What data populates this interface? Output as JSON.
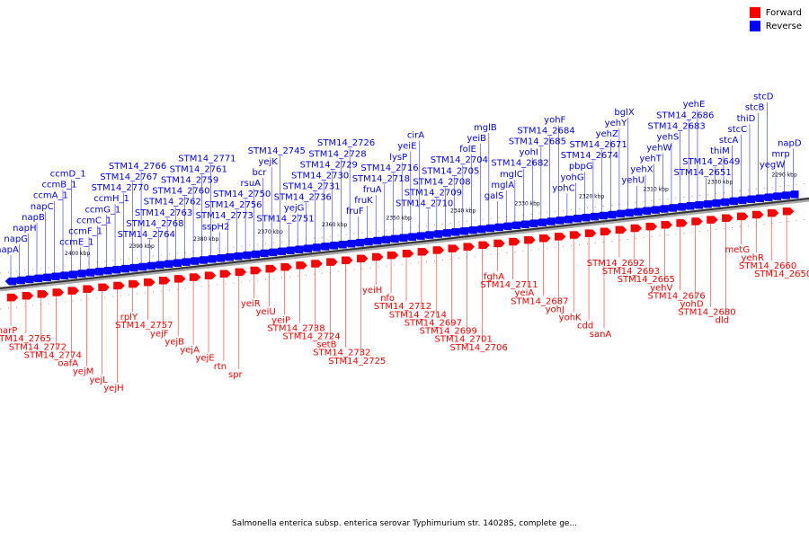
{
  "colors": {
    "forward": "#ff0000",
    "reverse": "#0000ff",
    "axis": "#888888"
  },
  "legend": [
    {
      "label": "Forward",
      "color": "#ff0000"
    },
    {
      "label": "Reverse",
      "color": "#0000ff"
    }
  ],
  "caption": "Salmonella enterica subsp. enterica serovar Typhimurium str. 14028S, complete ge...",
  "kbp_labels": [
    "2400 kbp",
    "2390 kbp",
    "2380 kbp",
    "2370 kbp",
    "2360 kbp",
    "2350 kbp",
    "2340 kbp",
    "2330 kbp",
    "2320 kbp",
    "2310 kbp",
    "2300 kbp",
    "2290 kbp"
  ],
  "reverse_labels": [
    "napA",
    "napG",
    "napH",
    "napB",
    "napC",
    "ccmA_1",
    "ccmB_1",
    "ccmD_1",
    "ccmE_1",
    "ccmF_1",
    "ccmC_1",
    "ccmG_1",
    "ccmH_1",
    "STM14_2770",
    "STM14_2767",
    "STM14_2766",
    "STM14_2764",
    "STM14_2768",
    "STM14_2763",
    "STM14_2762",
    "STM14_2760",
    "STM14_2759",
    "STM14_2761",
    "STM14_2771",
    "sspH2",
    "STM14_2773",
    "STM14_2756",
    "STM14_2750",
    "rsuA",
    "bcr",
    "yejK",
    "STM14_2745",
    "STM14_2751",
    "yejG",
    "STM14_2736",
    "STM14_2731",
    "STM14_2730",
    "STM14_2729",
    "STM14_2728",
    "STM14_2726",
    "fruF",
    "fruK",
    "fruA",
    "STM14_2718",
    "STM14_2716",
    "lysP",
    "yeiE",
    "cirA",
    "STM14_2710",
    "STM14_2709",
    "STM14_2708",
    "STM14_2705",
    "STM14_2704",
    "folE",
    "yeiB",
    "mglB",
    "galS",
    "mglA",
    "mglC",
    "STM14_2682",
    "yohI",
    "STM14_2685",
    "STM14_2684",
    "yohF",
    "yohC",
    "yohG",
    "pbpG",
    "STM14_2674",
    "STM14_2671",
    "yehZ",
    "yehY",
    "bglX",
    "yehU",
    "yehX",
    "yehT",
    "yehW",
    "yehS",
    "STM14_2683",
    "STM14_2686",
    "yehE",
    "STM14_2651",
    "STM14_2649",
    "thiM",
    "stcA",
    "stcC",
    "thiD",
    "stcB",
    "stcD",
    "yegW",
    "mrp",
    "napD"
  ],
  "forward_labels": [
    "narP",
    "STM14_2765",
    "STM14_2772",
    "STM14_2774",
    "oafA",
    "yejM",
    "yejL",
    "yejH",
    "rplY",
    "STM14_2757",
    "yejF",
    "yejB",
    "yejA",
    "yejE",
    "rtn",
    "spr",
    "yeiR",
    "yeiU",
    "yeiP",
    "STM14_2738",
    "STM14_2724",
    "setB",
    "STM14_2732",
    "STM14_2725",
    "yeiH",
    "nfo",
    "STM14_2712",
    "STM14_2714",
    "STM14_2697",
    "STM14_2699",
    "STM14_2701",
    "STM14_2706",
    "fghA",
    "STM14_2711",
    "yeiA",
    "STM14_2687",
    "yohJ",
    "yohK",
    "cdd",
    "sanA",
    "STM14_2692",
    "STM14_2693",
    "STM14_2665",
    "yehV",
    "STM14_2676",
    "yohD",
    "STM14_2680",
    "dld",
    "metG",
    "yehR",
    "STM14_2660",
    "STM14_2650"
  ]
}
